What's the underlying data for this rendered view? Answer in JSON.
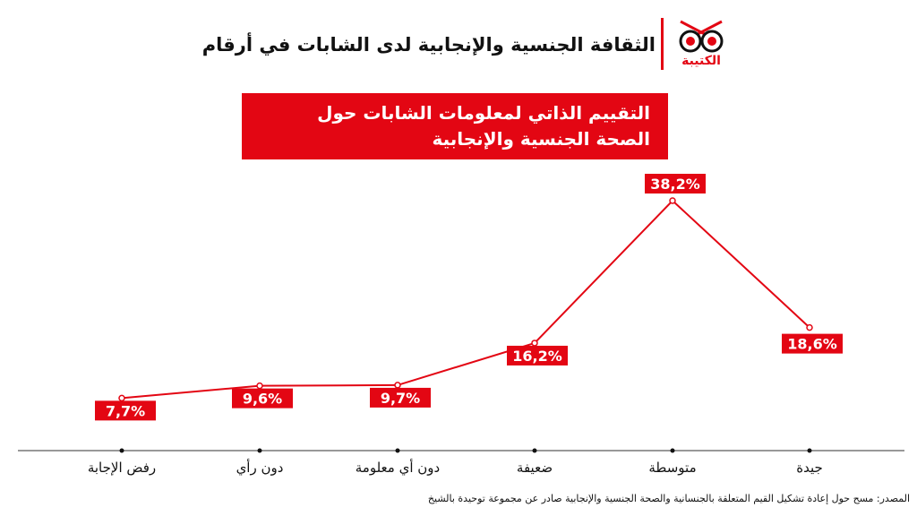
{
  "header": {
    "title": "الثقافة الجنسية والإنجابية لدى الشابات في أرقام",
    "logo_text": "الكتيبة"
  },
  "colors": {
    "accent": "#e30613",
    "axis": "#333333",
    "text": "#111111"
  },
  "chart_data": {
    "type": "line",
    "title_lines": [
      "التقييم الذاتي لمعلومات الشابات حول",
      "الصحة الجنسية والإنجابية"
    ],
    "categories": [
      "رفض الإجابة",
      "دون رأي",
      "دون أي معلومة",
      "ضعيفة",
      "متوسطة",
      "جيدة"
    ],
    "values": [
      7.7,
      9.6,
      9.7,
      16.2,
      38.2,
      18.6
    ],
    "value_labels": [
      "7,7%",
      "9,6%",
      "9,7%",
      "16,2%",
      "38,2%",
      "18,6%"
    ],
    "xlabel": "",
    "ylabel": "",
    "ylim": [
      0,
      40
    ],
    "grid": false,
    "legend": "none"
  },
  "source": "المصدر: مسح حول إعادة تشكيل القيم المتعلقة بالجنسانية والصحة الجنسية والإنجابية صادر عن مجموعة توحيدة بالشيخ"
}
